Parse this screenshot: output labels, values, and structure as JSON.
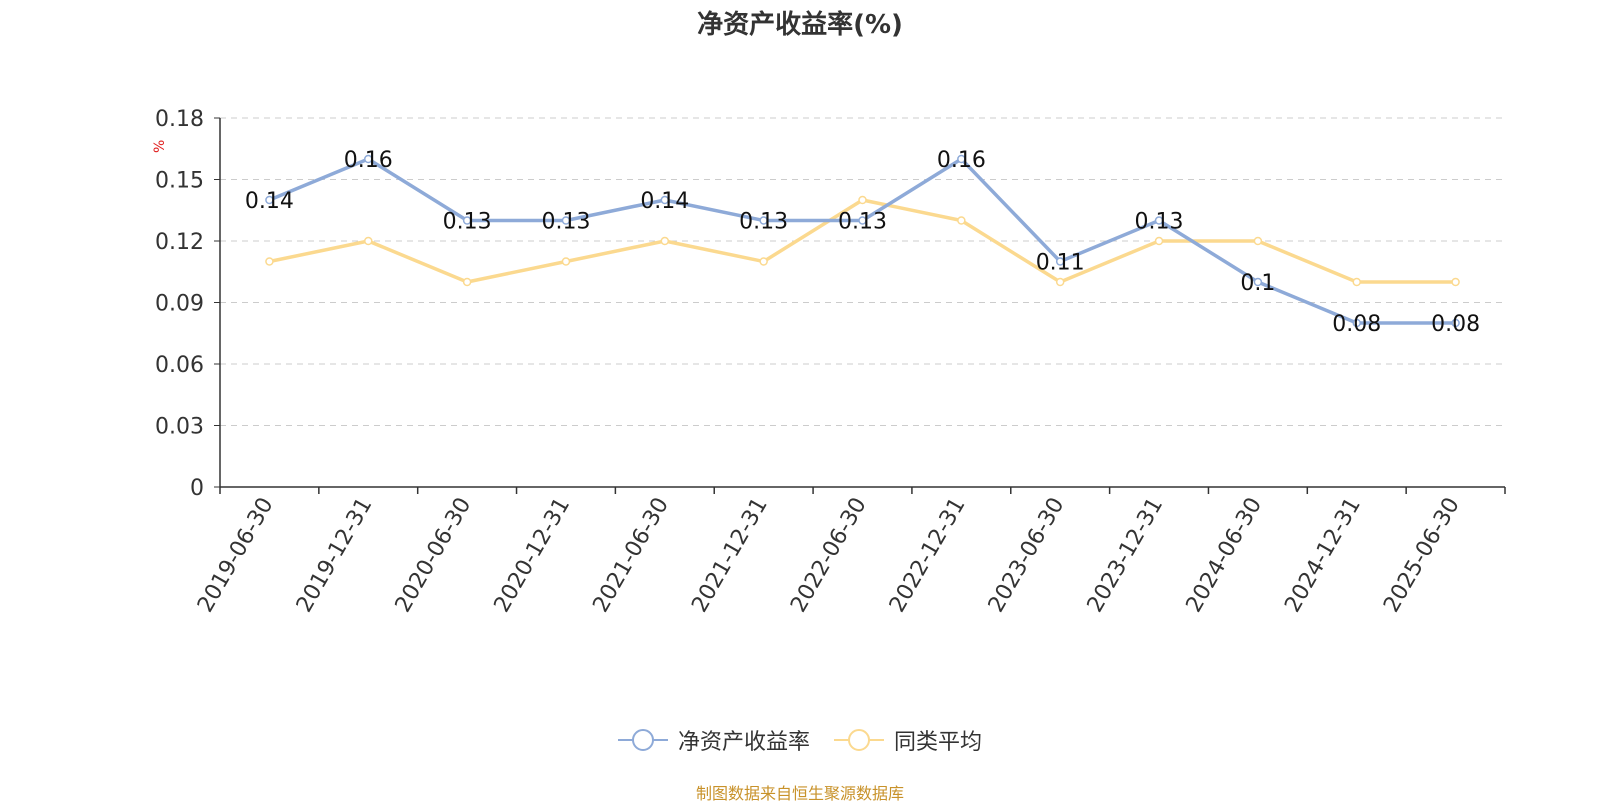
{
  "title": "净资产收益率(%)",
  "source_note": "制图数据来自恒生聚源数据库",
  "chart_data": {
    "type": "line",
    "title": "净资产收益率(%)",
    "xlabel": "",
    "ylabel": "%",
    "categories": [
      "2019-06-30",
      "2019-12-31",
      "2020-06-30",
      "2020-12-31",
      "2021-06-30",
      "2021-12-31",
      "2022-06-30",
      "2022-12-31",
      "2023-06-30",
      "2023-12-31",
      "2024-06-30",
      "2024-12-31",
      "2025-06-30"
    ],
    "series": [
      {
        "name": "净资产收益率",
        "color": "#8eaad8",
        "show_labels": true,
        "values": [
          0.14,
          0.16,
          0.13,
          0.13,
          0.14,
          0.13,
          0.13,
          0.16,
          0.11,
          0.13,
          0.1,
          0.08,
          0.08
        ],
        "labels": [
          "0.14",
          "0.16",
          "0.13",
          "0.13",
          "0.14",
          "0.13",
          "0.13",
          "0.16",
          "0.11",
          "0.13",
          "0.1",
          "0.08",
          "0.08"
        ]
      },
      {
        "name": "同类平均",
        "color": "#fbd98f",
        "show_labels": false,
        "values": [
          0.11,
          0.12,
          0.1,
          0.11,
          0.12,
          0.11,
          0.14,
          0.13,
          0.1,
          0.12,
          0.12,
          0.1,
          0.1
        ]
      }
    ],
    "yticks": [
      "0",
      "0.03",
      "0.06",
      "0.09",
      "0.12",
      "0.15",
      "0.18"
    ],
    "ylim": [
      0,
      0.18
    ],
    "grid": true,
    "legend_position": "bottom"
  }
}
